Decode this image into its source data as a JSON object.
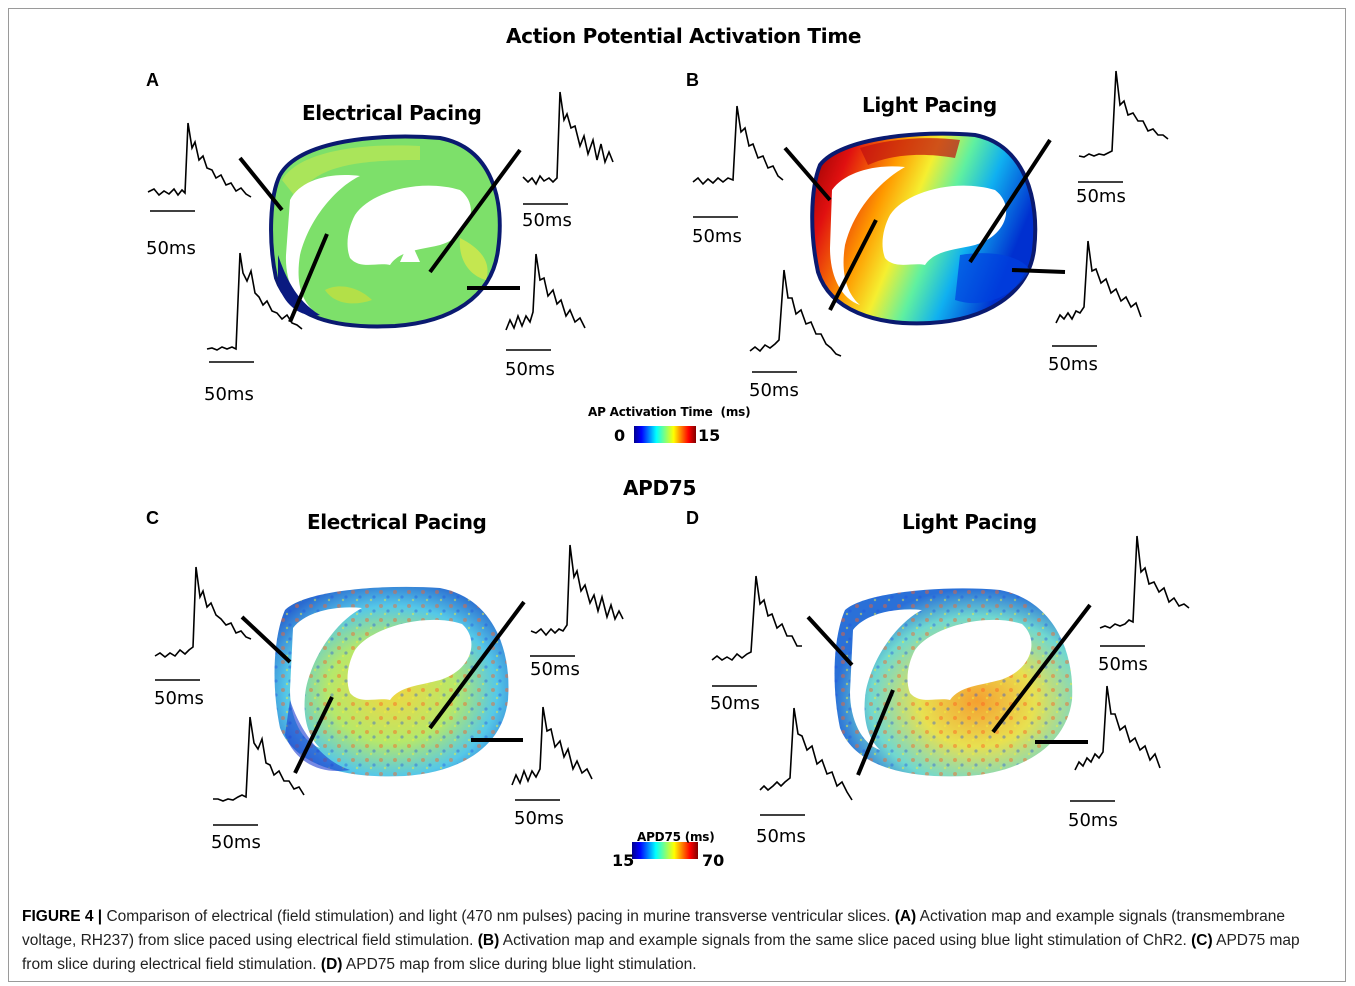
{
  "top_title": "Action Potential Activation Time",
  "bottom_title": "APD75",
  "panels": [
    {
      "letter": "A",
      "title": "Electrical Pacing"
    },
    {
      "letter": "B",
      "title": "Light Pacing"
    },
    {
      "letter": "C",
      "title": "Electrical Pacing"
    },
    {
      "letter": "D",
      "title": "Light Pacing"
    }
  ],
  "scale_label": "50ms",
  "colorbar_top": {
    "title": "AP Activation Time  (ms)",
    "min": "0",
    "max": "15"
  },
  "colorbar_bottom": {
    "title": "APD75 (ms)",
    "min": "15",
    "max": "70"
  },
  "caption": {
    "label": "FIGURE 4 |",
    "text": " Comparison of electrical (field stimulation) and light (470 nm pulses) pacing in murine transverse ventricular slices. ",
    "a_label": "(A)",
    "a_text": " Activation map and example signals (transmembrane voltage, RH237) from slice paced using electrical field stimulation. ",
    "b_label": "(B)",
    "b_text": " Activation map and example signals from the same slice paced using blue light stimulation of ChR2. ",
    "c_label": "(C)",
    "c_text": " APD75 map from slice during electrical field stimulation. ",
    "d_label": "(D)",
    "d_text": " APD75 map from slice during blue light stimulation."
  },
  "colors": {
    "jet_low": "#0000a0",
    "jet_mid": "#50e050",
    "jet_high": "#a00000",
    "caption_text": "#222222"
  }
}
